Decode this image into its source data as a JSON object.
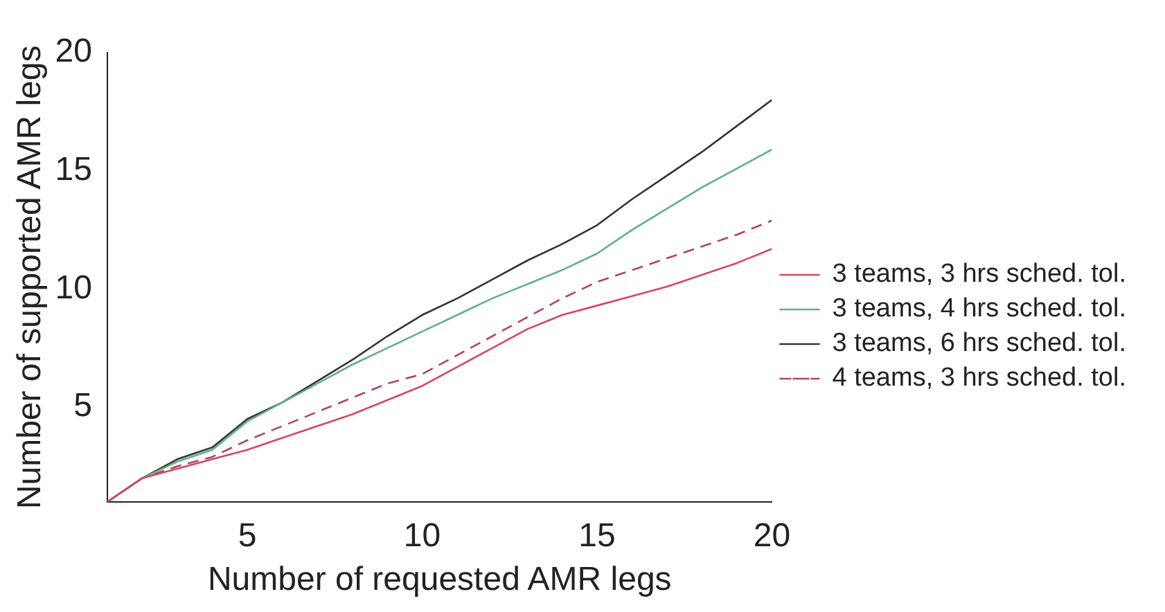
{
  "chart_data": {
    "type": "line",
    "xlabel": "Number of requested AMR legs",
    "ylabel": "Number of supported AMR legs",
    "x": [
      1,
      2,
      3,
      4,
      5,
      6,
      7,
      8,
      9,
      10,
      11,
      12,
      13,
      14,
      15,
      16,
      17,
      18,
      19,
      20
    ],
    "xlim": [
      1,
      20
    ],
    "ylim": [
      1,
      20
    ],
    "xticks": [
      5,
      10,
      15,
      20
    ],
    "yticks": [
      5,
      10,
      15,
      20
    ],
    "grid": false,
    "legend": "right",
    "marker": "none",
    "series": [
      {
        "name": "3 teams, 3 hrs sched. tol.",
        "color": "#d9455f",
        "line_style": "solid",
        "values": [
          1,
          2,
          2.4,
          2.8,
          3.2,
          3.7,
          4.2,
          4.7,
          5.3,
          5.9,
          6.7,
          7.5,
          8.3,
          8.9,
          9.3,
          9.7,
          10.1,
          10.6,
          11.1,
          11.7
        ]
      },
      {
        "name": "3 teams, 4 hrs sched. tol.",
        "color": "#5fb08a",
        "line_style": "solid",
        "values": [
          1,
          2,
          2.7,
          3.2,
          4.4,
          5.2,
          6.0,
          6.8,
          7.5,
          8.2,
          8.9,
          9.6,
          10.2,
          10.8,
          11.5,
          12.5,
          13.4,
          14.3,
          15.1,
          15.9
        ]
      },
      {
        "name": "3 teams, 6 hrs sched. tol.",
        "color": "#333333",
        "line_style": "solid",
        "values": [
          1,
          2,
          2.8,
          3.3,
          4.5,
          5.2,
          6.1,
          7.0,
          8.0,
          8.9,
          9.6,
          10.4,
          11.2,
          11.9,
          12.7,
          13.8,
          14.8,
          15.8,
          16.9,
          18
        ]
      },
      {
        "name": "4 teams, 3 hrs sched. tol.",
        "color": "#b0455f",
        "line_style": "dashed",
        "values": [
          1,
          2,
          2.5,
          2.9,
          3.6,
          4.2,
          4.8,
          5.4,
          6.0,
          6.4,
          7.2,
          8.0,
          8.8,
          9.6,
          10.3,
          10.8,
          11.3,
          11.8,
          12.3,
          12.9
        ]
      }
    ]
  }
}
